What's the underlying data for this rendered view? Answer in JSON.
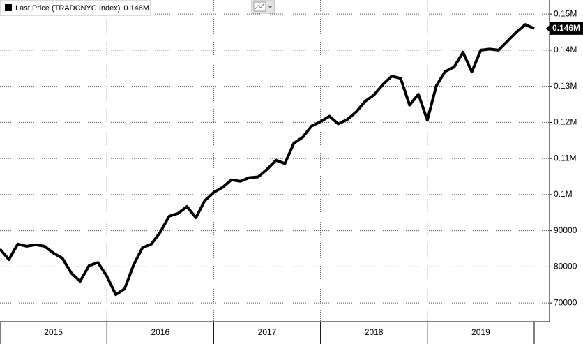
{
  "chart_data": {
    "type": "line",
    "categories": [
      null,
      null,
      null,
      null,
      null,
      null,
      "2015",
      null,
      null,
      null,
      null,
      null,
      null,
      null,
      null,
      null,
      null,
      null,
      "2016",
      null,
      null,
      null,
      null,
      null,
      null,
      null,
      null,
      null,
      null,
      null,
      "2017",
      null,
      null,
      null,
      null,
      null,
      null,
      null,
      null,
      null,
      null,
      null,
      "2018",
      null,
      null,
      null,
      null,
      null,
      null,
      null,
      null,
      null,
      null,
      null,
      "2019",
      null,
      null,
      null,
      null,
      null,
      null
    ],
    "series": [
      {
        "name": "Last Price (TRADCNYC Index)",
        "color": "#000000",
        "values": [
          84900,
          82000,
          86300,
          85700,
          86100,
          85700,
          83800,
          82400,
          78300,
          76000,
          80300,
          81200,
          77400,
          72300,
          73900,
          80500,
          85300,
          86300,
          89600,
          94000,
          94800,
          96700,
          93600,
          98300,
          100600,
          102000,
          104100,
          103700,
          104700,
          104900,
          107000,
          109500,
          108600,
          114200,
          115900,
          119000,
          120200,
          121700,
          119600,
          120800,
          122900,
          125800,
          127600,
          130500,
          132800,
          132200,
          124800,
          127800,
          120600,
          130100,
          134100,
          135300,
          139400,
          134000,
          140000,
          140300,
          140000,
          142500,
          145000,
          147100,
          146000
        ],
        "value_labels": [
          null,
          null,
          null,
          null,
          null,
          null,
          null,
          null,
          null,
          null,
          null,
          null,
          null,
          null,
          null,
          null,
          null,
          null,
          null,
          null,
          null,
          null,
          null,
          null,
          null,
          null,
          null,
          null,
          null,
          null,
          null,
          null,
          null,
          null,
          null,
          null,
          null,
          null,
          null,
          null,
          null,
          null,
          null,
          null,
          null,
          null,
          null,
          null,
          null,
          null,
          null,
          null,
          null,
          null,
          null,
          null,
          null,
          null,
          null,
          null,
          "0.146M"
        ]
      }
    ],
    "ylim": [
      65000,
      153900
    ],
    "yticks": [
      70000,
      80000,
      90000,
      {
        "value": 100000,
        "label": "0.1M"
      },
      {
        "value": 110000,
        "label": "0.11M"
      },
      {
        "value": 120000,
        "label": "0.12M"
      },
      {
        "value": 130000,
        "label": "0.13M"
      },
      {
        "value": 140000,
        "label": "0.14M"
      },
      {
        "value": 150000,
        "label": "0.15M"
      }
    ],
    "grid": true
  }
}
